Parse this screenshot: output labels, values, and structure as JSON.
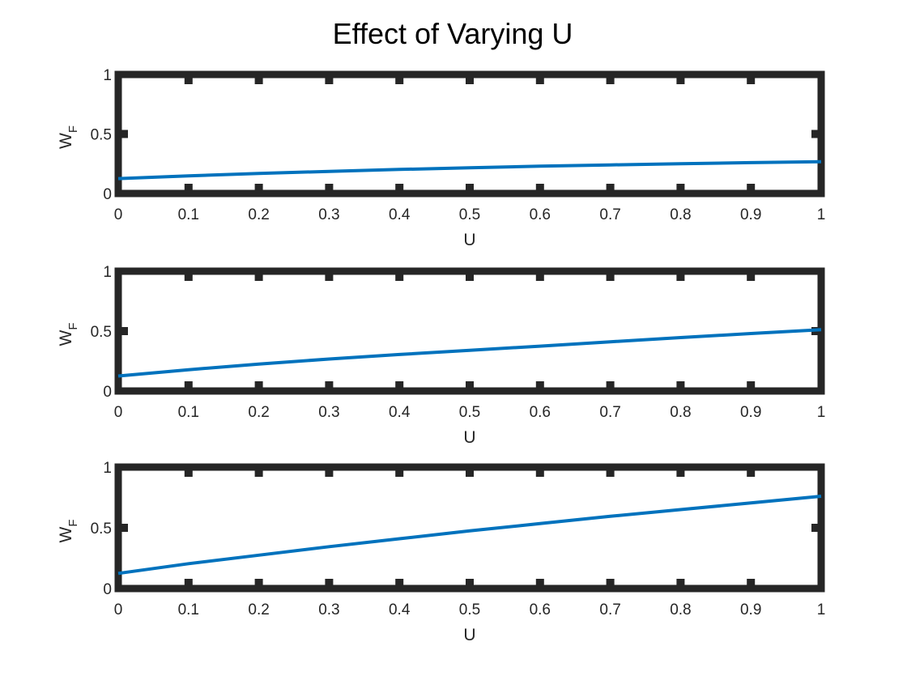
{
  "chart_data": {
    "title": "Effect of Varying U",
    "type": "line",
    "line_color": "#0072BD",
    "axes_color": "#262626",
    "subplots": [
      {
        "xlabel": "U",
        "ylabel": "W",
        "ylabel_subscript": "F",
        "xlim": [
          0,
          1
        ],
        "ylim": [
          0,
          1
        ],
        "xticks": [
          "0",
          "0.1",
          "0.2",
          "0.3",
          "0.4",
          "0.5",
          "0.6",
          "0.7",
          "0.8",
          "0.9",
          "1"
        ],
        "yticks": [
          "0",
          "0.5",
          "1"
        ],
        "series": [
          {
            "x": [
              0,
              0.1,
              0.2,
              0.3,
              0.4,
              0.5,
              0.6,
              0.7,
              0.8,
              0.9,
              1.0
            ],
            "y": [
              0.125,
              0.148,
              0.168,
              0.186,
              0.202,
              0.216,
              0.229,
              0.24,
              0.25,
              0.259,
              0.267
            ]
          }
        ]
      },
      {
        "xlabel": "U",
        "ylabel": "W",
        "ylabel_subscript": "F",
        "xlim": [
          0,
          1
        ],
        "ylim": [
          0,
          1
        ],
        "xticks": [
          "0",
          "0.1",
          "0.2",
          "0.3",
          "0.4",
          "0.5",
          "0.6",
          "0.7",
          "0.8",
          "0.9",
          "1"
        ],
        "yticks": [
          "0",
          "0.5",
          "1"
        ],
        "series": [
          {
            "x": [
              0,
              0.1,
              0.2,
              0.3,
              0.4,
              0.5,
              0.6,
              0.7,
              0.8,
              0.9,
              1.0
            ],
            "y": [
              0.125,
              0.178,
              0.225,
              0.267,
              0.305,
              0.34,
              0.374,
              0.411,
              0.446,
              0.48,
              0.512
            ]
          }
        ]
      },
      {
        "xlabel": "U",
        "ylabel": "W",
        "ylabel_subscript": "F",
        "xlim": [
          0,
          1
        ],
        "ylim": [
          0,
          1
        ],
        "xticks": [
          "0",
          "0.1",
          "0.2",
          "0.3",
          "0.4",
          "0.5",
          "0.6",
          "0.7",
          "0.8",
          "0.9",
          "1"
        ],
        "yticks": [
          "0",
          "0.5",
          "1"
        ],
        "series": [
          {
            "x": [
              0,
              0.1,
              0.2,
              0.3,
              0.4,
              0.5,
              0.6,
              0.7,
              0.8,
              0.9,
              1.0
            ],
            "y": [
              0.125,
              0.205,
              0.275,
              0.345,
              0.41,
              0.475,
              0.535,
              0.595,
              0.65,
              0.705,
              0.76
            ]
          }
        ]
      }
    ]
  }
}
